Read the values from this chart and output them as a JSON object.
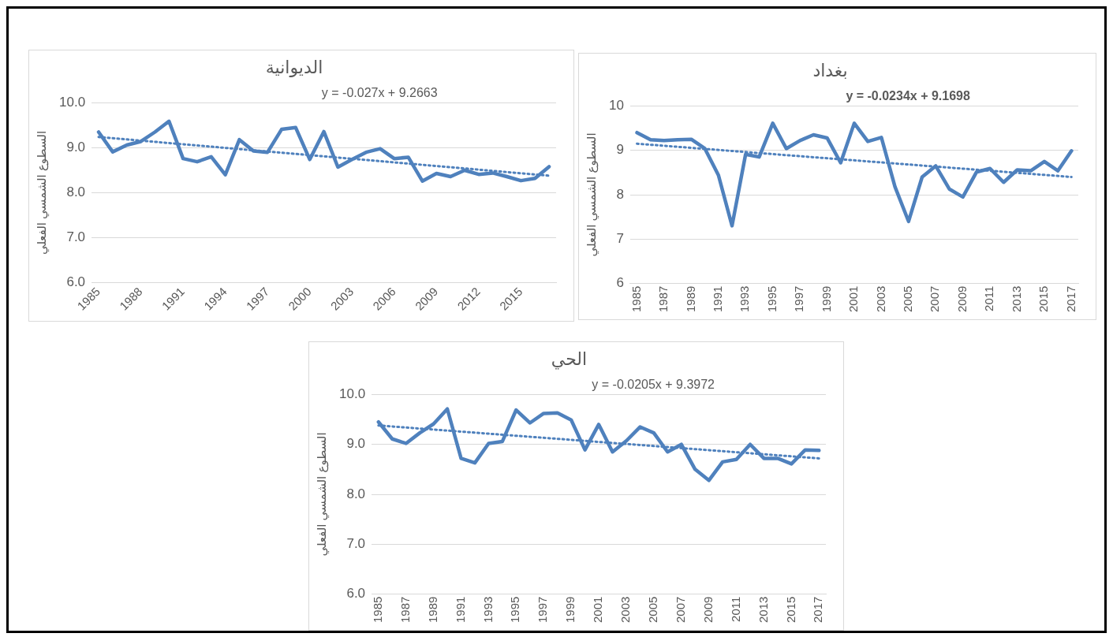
{
  "chart_data": [
    {
      "type": "line",
      "title": "الديوانية",
      "ylabel": "السطوع الشمسي الفعلي",
      "annotations": [
        "y = -0.027x + 9.2663"
      ],
      "categories": [
        "1985",
        null,
        null,
        "1988",
        null,
        null,
        "1991",
        null,
        null,
        "1994",
        null,
        null,
        "1997",
        null,
        null,
        "2000",
        null,
        null,
        "2003",
        null,
        null,
        "2006",
        null,
        null,
        "2009",
        null,
        null,
        "2012",
        null,
        null,
        "2015",
        null,
        null
      ],
      "series": [
        {
          "color": "#4f81bd",
          "values": [
            9.35,
            8.91,
            9.06,
            9.14,
            9.35,
            9.59,
            8.76,
            8.69,
            8.8,
            8.4,
            9.18,
            8.93,
            8.9,
            9.41,
            9.45,
            8.74,
            9.36,
            8.57,
            8.74,
            8.9,
            8.98,
            8.76,
            8.79,
            8.26,
            8.43,
            8.36,
            8.5,
            8.41,
            8.44,
            8.36,
            8.27,
            8.32,
            8.58
          ]
        },
        {
          "type": "line",
          "color": "#4f81bd",
          "line_style": "dotted",
          "values": [
            9.24,
            null,
            null,
            null,
            null,
            null,
            null,
            null,
            null,
            null,
            null,
            null,
            null,
            null,
            null,
            null,
            null,
            null,
            null,
            null,
            null,
            null,
            null,
            null,
            null,
            null,
            null,
            null,
            null,
            null,
            null,
            null,
            8.38
          ]
        }
      ],
      "ylim": [
        6,
        10
      ],
      "yticks": [
        {
          "value": 6,
          "label": "6.0"
        },
        {
          "value": 7,
          "label": "7.0"
        },
        {
          "value": 8,
          "label": "8.0"
        },
        {
          "value": 9,
          "label": "9.0"
        },
        {
          "value": 10,
          "label": "10.0"
        }
      ],
      "grid": "y",
      "legend": false
    },
    {
      "type": "line",
      "title": "بغداد",
      "ylabel": "السطوع الشمسي الفعلي",
      "annotations": [
        "y = -0.0234x + 9.1698"
      ],
      "categories": [
        "1985",
        null,
        "1987",
        null,
        "1989",
        null,
        "1991",
        null,
        "1993",
        null,
        "1995",
        null,
        "1997",
        null,
        "1999",
        null,
        "2001",
        null,
        "2003",
        null,
        "2005",
        null,
        "2007",
        null,
        "2009",
        null,
        "2011",
        null,
        "2013",
        null,
        "2015",
        null,
        "2017"
      ],
      "series": [
        {
          "color": "#4f81bd",
          "values": [
            9.4,
            9.24,
            9.22,
            9.24,
            9.25,
            9.04,
            8.44,
            7.3,
            8.91,
            8.85,
            9.61,
            9.04,
            9.22,
            9.35,
            9.28,
            8.72,
            9.61,
            9.2,
            9.29,
            8.18,
            7.4,
            8.4,
            8.65,
            8.13,
            7.95,
            8.51,
            8.59,
            8.28,
            8.56,
            8.54,
            8.75,
            8.54,
            8.99
          ]
        },
        {
          "type": "line",
          "color": "#4f81bd",
          "line_style": "dotted",
          "values": [
            9.15,
            null,
            null,
            null,
            null,
            null,
            null,
            null,
            null,
            null,
            null,
            null,
            null,
            null,
            null,
            null,
            null,
            null,
            null,
            null,
            null,
            null,
            null,
            null,
            null,
            null,
            null,
            null,
            null,
            null,
            null,
            null,
            8.4
          ]
        }
      ],
      "ylim": [
        6,
        10
      ],
      "yticks": [
        6,
        7,
        8,
        9,
        10
      ],
      "grid": "y",
      "legend": false
    },
    {
      "type": "line",
      "title": "الحي",
      "ylabel": "السطوع الشمسي الفعلي",
      "annotations": [
        "y = -0.0205x + 9.3972"
      ],
      "categories": [
        "1985",
        null,
        "1987",
        null,
        "1989",
        null,
        "1991",
        null,
        "1993",
        null,
        "1995",
        null,
        "1997",
        null,
        "1999",
        null,
        "2001",
        null,
        "2003",
        null,
        "2005",
        null,
        "2007",
        null,
        "2009",
        null,
        "2011",
        null,
        "2013",
        null,
        "2015",
        null,
        "2017"
      ],
      "series": [
        {
          "color": "#4f81bd",
          "values": [
            9.45,
            9.11,
            9.02,
            9.23,
            9.41,
            9.71,
            8.72,
            8.63,
            9.02,
            9.06,
            9.69,
            9.43,
            9.62,
            9.63,
            9.49,
            8.89,
            9.4,
            8.85,
            9.07,
            9.35,
            9.23,
            8.85,
            9.0,
            8.5,
            8.28,
            8.65,
            8.7,
            9.0,
            8.72,
            8.72,
            8.61,
            8.89,
            8.88
          ]
        },
        {
          "type": "line",
          "color": "#4f81bd",
          "line_style": "dotted",
          "values": [
            9.38,
            null,
            null,
            null,
            null,
            null,
            null,
            null,
            null,
            null,
            null,
            null,
            null,
            null,
            null,
            null,
            null,
            null,
            null,
            null,
            null,
            null,
            null,
            null,
            null,
            null,
            null,
            null,
            null,
            null,
            null,
            null,
            8.72
          ]
        }
      ],
      "ylim": [
        6,
        10
      ],
      "yticks": [
        {
          "value": 6,
          "label": "6.0"
        },
        {
          "value": 7,
          "label": "7.0"
        },
        {
          "value": 8,
          "label": "8.0"
        },
        {
          "value": 9,
          "label": "9.0"
        },
        {
          "value": 10,
          "label": "10.0"
        }
      ],
      "grid": "y",
      "legend": false
    }
  ]
}
